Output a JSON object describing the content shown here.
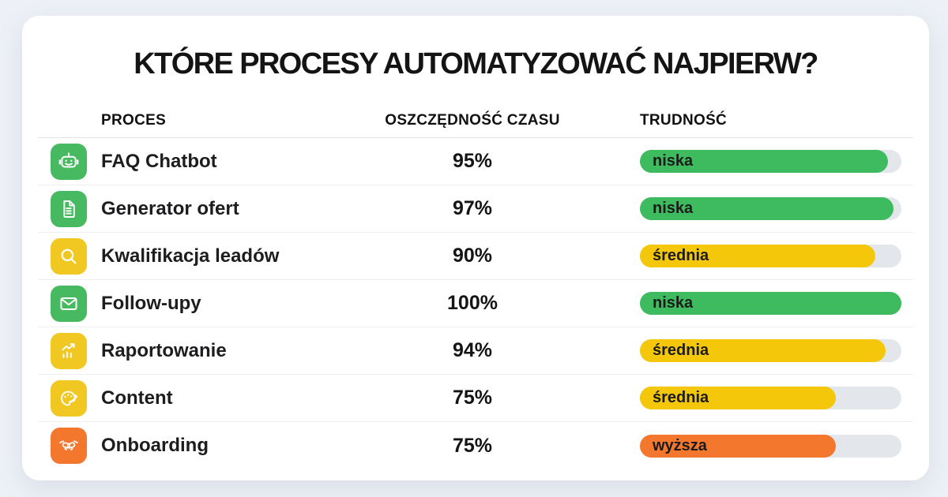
{
  "title": "KTÓRE PROCESY AUTOMATYZOWAĆ NAJPIERW?",
  "table": {
    "headers": {
      "process": "PROCES",
      "time_saving": "OSZCZĘDNOŚĆ CZASU",
      "difficulty": "TRUDNOŚĆ"
    },
    "rows": [
      {
        "icon": "robot-icon",
        "icon_color": "#47b960",
        "process": "FAQ Chatbot",
        "time_saving": "95%",
        "difficulty_label": "niska",
        "difficulty_color": "#3dbb5e",
        "bar_percent": 95
      },
      {
        "icon": "document-icon",
        "icon_color": "#47b960",
        "process": "Generator ofert",
        "time_saving": "97%",
        "difficulty_label": "niska",
        "difficulty_color": "#3dbb5e",
        "bar_percent": 97
      },
      {
        "icon": "search-icon",
        "icon_color": "#f1c722",
        "process": "Kwalifikacja leadów",
        "time_saving": "90%",
        "difficulty_label": "średnia",
        "difficulty_color": "#f4c70a",
        "bar_percent": 90
      },
      {
        "icon": "envelope-icon",
        "icon_color": "#47b960",
        "process": "Follow-upy",
        "time_saving": "100%",
        "difficulty_label": "niska",
        "difficulty_color": "#3dbb5e",
        "bar_percent": 100
      },
      {
        "icon": "chart-icon",
        "icon_color": "#f1c722",
        "process": "Raportowanie",
        "time_saving": "94%",
        "difficulty_label": "średnia",
        "difficulty_color": "#f4c70a",
        "bar_percent": 94
      },
      {
        "icon": "palette-icon",
        "icon_color": "#f1c722",
        "process": "Content",
        "time_saving": "75%",
        "difficulty_label": "średnia",
        "difficulty_color": "#f4c70a",
        "bar_percent": 75
      },
      {
        "icon": "handshake-icon",
        "icon_color": "#f4772e",
        "process": "Onboarding",
        "time_saving": "75%",
        "difficulty_label": "wyższa",
        "difficulty_color": "#f4772e",
        "bar_percent": 75
      }
    ]
  },
  "colors": {
    "page_background": "#edf1f6",
    "card_background": "#ffffff",
    "green": "#3dbb5e",
    "yellow": "#f4c70a",
    "orange": "#f4772e",
    "bar_track": "#e3e6eb",
    "text": "#141414"
  },
  "chart_data": {
    "type": "table",
    "title": "KTÓRE PROCESY AUTOMATYZOWAĆ NAJPIERW?",
    "columns": [
      "PROCES",
      "OSZCZĘDNOŚĆ CZASU",
      "TRUDNOŚĆ"
    ],
    "rows": [
      [
        "FAQ Chatbot",
        "95%",
        "niska"
      ],
      [
        "Generator ofert",
        "97%",
        "niska"
      ],
      [
        "Kwalifikacja leadów",
        "90%",
        "średnia"
      ],
      [
        "Follow-upy",
        "100%",
        "niska"
      ],
      [
        "Raportowanie",
        "94%",
        "średnia"
      ],
      [
        "Content",
        "75%",
        "średnia"
      ],
      [
        "Onboarding",
        "75%",
        "wyższa"
      ]
    ],
    "difficulty_bar_fill_percent": [
      95,
      97,
      90,
      100,
      94,
      75,
      75
    ],
    "difficulty_color_map": {
      "niska": "#3dbb5e",
      "średnia": "#f4c70a",
      "wyższa": "#f4772e"
    },
    "legend_position": "none",
    "grid": false
  }
}
